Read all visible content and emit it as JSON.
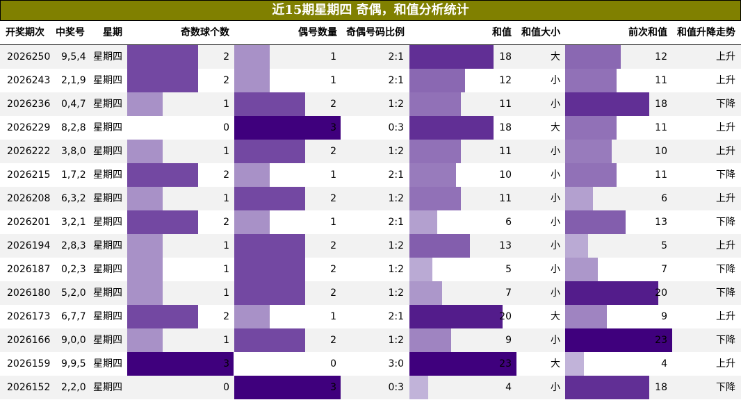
{
  "title": "近15期星期四 奇偶，和值分析统计",
  "headers": {
    "issue": "开奖期次",
    "numbers": "中奖号",
    "weekday": "星期",
    "odd_count": "奇数球个数",
    "even_count": "偶号数量",
    "ratio": "奇偶号码比例",
    "sum": "和值",
    "sum_size": "和值大小",
    "prev_sum": "前次和值",
    "trend": "和值升降走势"
  },
  "chart_data": {
    "type": "table",
    "bar_colors": [
      "#dcd9ec",
      "#3f007d"
    ],
    "columns": [
      "开奖期次",
      "中奖号",
      "星期",
      "奇数球个数",
      "偶号数量",
      "奇偶号码比例",
      "和值",
      "和值大小",
      "前次和值",
      "和值升降走势"
    ],
    "rows": [
      {
        "issue": "2026250",
        "numbers": "9,5,4",
        "weekday": "星期四",
        "odd": 2,
        "even": 1,
        "ratio": "2:1",
        "sum": 18,
        "size": "大",
        "prev_sum": 12,
        "trend": "上升"
      },
      {
        "issue": "2026243",
        "numbers": "2,1,9",
        "weekday": "星期四",
        "odd": 2,
        "even": 1,
        "ratio": "2:1",
        "sum": 12,
        "size": "小",
        "prev_sum": 11,
        "trend": "上升"
      },
      {
        "issue": "2026236",
        "numbers": "0,4,7",
        "weekday": "星期四",
        "odd": 1,
        "even": 2,
        "ratio": "1:2",
        "sum": 11,
        "size": "小",
        "prev_sum": 18,
        "trend": "下降"
      },
      {
        "issue": "2026229",
        "numbers": "8,2,8",
        "weekday": "星期四",
        "odd": 0,
        "even": 3,
        "ratio": "0:3",
        "sum": 18,
        "size": "大",
        "prev_sum": 11,
        "trend": "上升"
      },
      {
        "issue": "2026222",
        "numbers": "3,8,0",
        "weekday": "星期四",
        "odd": 1,
        "even": 2,
        "ratio": "1:2",
        "sum": 11,
        "size": "小",
        "prev_sum": 10,
        "trend": "上升"
      },
      {
        "issue": "2026215",
        "numbers": "1,7,2",
        "weekday": "星期四",
        "odd": 2,
        "even": 1,
        "ratio": "2:1",
        "sum": 10,
        "size": "小",
        "prev_sum": 11,
        "trend": "下降"
      },
      {
        "issue": "2026208",
        "numbers": "6,3,2",
        "weekday": "星期四",
        "odd": 1,
        "even": 2,
        "ratio": "1:2",
        "sum": 11,
        "size": "小",
        "prev_sum": 6,
        "trend": "上升"
      },
      {
        "issue": "2026201",
        "numbers": "3,2,1",
        "weekday": "星期四",
        "odd": 2,
        "even": 1,
        "ratio": "2:1",
        "sum": 6,
        "size": "小",
        "prev_sum": 13,
        "trend": "下降"
      },
      {
        "issue": "2026194",
        "numbers": "2,8,3",
        "weekday": "星期四",
        "odd": 1,
        "even": 2,
        "ratio": "1:2",
        "sum": 13,
        "size": "小",
        "prev_sum": 5,
        "trend": "上升"
      },
      {
        "issue": "2026187",
        "numbers": "0,2,3",
        "weekday": "星期四",
        "odd": 1,
        "even": 2,
        "ratio": "1:2",
        "sum": 5,
        "size": "小",
        "prev_sum": 7,
        "trend": "下降"
      },
      {
        "issue": "2026180",
        "numbers": "5,2,0",
        "weekday": "星期四",
        "odd": 1,
        "even": 2,
        "ratio": "1:2",
        "sum": 7,
        "size": "小",
        "prev_sum": 20,
        "trend": "下降"
      },
      {
        "issue": "2026173",
        "numbers": "6,7,7",
        "weekday": "星期四",
        "odd": 2,
        "even": 1,
        "ratio": "2:1",
        "sum": 20,
        "size": "大",
        "prev_sum": 9,
        "trend": "上升"
      },
      {
        "issue": "2026166",
        "numbers": "9,0,0",
        "weekday": "星期四",
        "odd": 1,
        "even": 2,
        "ratio": "1:2",
        "sum": 9,
        "size": "小",
        "prev_sum": 23,
        "trend": "下降"
      },
      {
        "issue": "2026159",
        "numbers": "9,9,5",
        "weekday": "星期四",
        "odd": 3,
        "even": 0,
        "ratio": "3:0",
        "sum": 23,
        "size": "大",
        "prev_sum": 4,
        "trend": "上升"
      },
      {
        "issue": "2026152",
        "numbers": "2,2,0",
        "weekday": "星期四",
        "odd": 0,
        "even": 3,
        "ratio": "0:3",
        "sum": 4,
        "size": "小",
        "prev_sum": 18,
        "trend": "下降"
      }
    ]
  }
}
